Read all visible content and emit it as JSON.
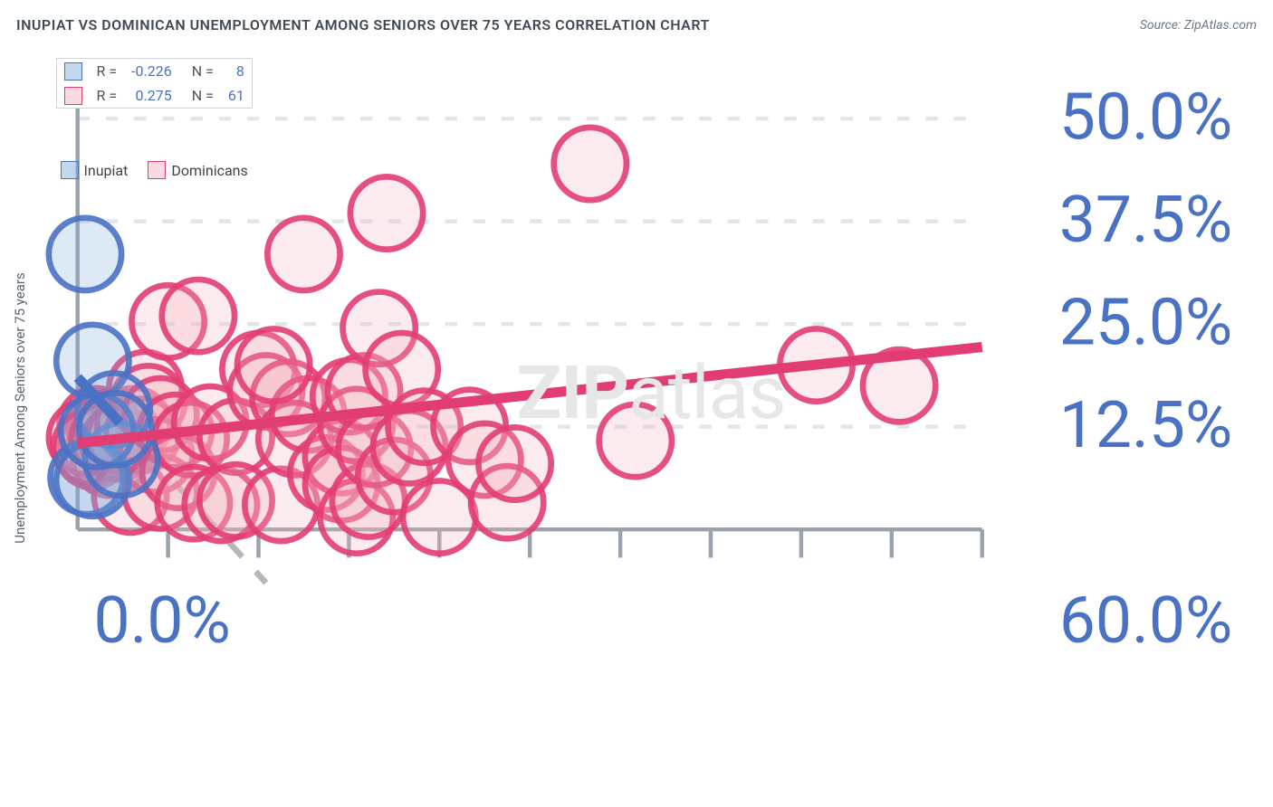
{
  "title": "INUPIAT VS DOMINICAN UNEMPLOYMENT AMONG SENIORS OVER 75 YEARS CORRELATION CHART",
  "source": "Source: ZipAtlas.com",
  "ylabel": "Unemployment Among Seniors over 75 years",
  "watermark_zip": "ZIP",
  "watermark_atlas": "atlas",
  "chart": {
    "type": "scatter",
    "xlim": [
      0,
      60
    ],
    "ylim": [
      0,
      55
    ],
    "x_axis_origin_label": "0.0%",
    "x_axis_max_label": "60.0%",
    "x_ticks": [
      6,
      12,
      18,
      24,
      30,
      36,
      42,
      48,
      54,
      60
    ],
    "y_grid": [
      {
        "value": 12.5,
        "label": "12.5%"
      },
      {
        "value": 25.0,
        "label": "25.0%"
      },
      {
        "value": 37.5,
        "label": "37.5%"
      },
      {
        "value": 50.0,
        "label": "50.0%"
      }
    ],
    "grid_color": "#e2e6ea",
    "axis_color": "#9aa3ad",
    "axis_label_color": "#4a72c4",
    "background_color": "#ffffff",
    "marker_radius": 9,
    "marker_fill_opacity": 0.25,
    "marker_stroke_opacity": 0.9
  },
  "series": {
    "inupiat": {
      "label": "Inupiat",
      "color": "#7ba6da",
      "stroke": "#4a72c4",
      "R": "-0.226",
      "N": "8",
      "trend": {
        "x1": 0,
        "y1": 18.5,
        "x2": 2.8,
        "y2": 13.0,
        "extend_x2": 12.5,
        "extend_y2": -6.5
      },
      "points": [
        {
          "x": 0.5,
          "y": 33.5
        },
        {
          "x": 1.0,
          "y": 20.5
        },
        {
          "x": 0.6,
          "y": 6.3
        },
        {
          "x": 1.0,
          "y": 6.0
        },
        {
          "x": 2.9,
          "y": 8.5
        },
        {
          "x": 2.4,
          "y": 14.6
        },
        {
          "x": 1.3,
          "y": 12.0
        },
        {
          "x": 2.5,
          "y": 12.2
        }
      ]
    },
    "dominicans": {
      "label": "Dominicans",
      "color": "#f2aebd",
      "stroke": "#e23d73",
      "R": "0.275",
      "N": "61",
      "trend": {
        "x1": 0,
        "y1": 10.5,
        "x2": 60,
        "y2": 22.2
      },
      "points": [
        {
          "x": 1.0,
          "y": 9.5
        },
        {
          "x": 1.3,
          "y": 10.5
        },
        {
          "x": 1.2,
          "y": 12.8
        },
        {
          "x": 1.8,
          "y": 12.2
        },
        {
          "x": 2.1,
          "y": 8.5
        },
        {
          "x": 0.5,
          "y": 11.2
        },
        {
          "x": 0.8,
          "y": 10.0
        },
        {
          "x": 2.3,
          "y": 12.5
        },
        {
          "x": 2.0,
          "y": 11.0
        },
        {
          "x": 2.7,
          "y": 10.5
        },
        {
          "x": 3.1,
          "y": 11.3
        },
        {
          "x": 3.7,
          "y": 12.8
        },
        {
          "x": 3.5,
          "y": 4.0
        },
        {
          "x": 4.5,
          "y": 17.2
        },
        {
          "x": 4.3,
          "y": 11.5
        },
        {
          "x": 4.7,
          "y": 15.5
        },
        {
          "x": 5.2,
          "y": 9.0
        },
        {
          "x": 5.5,
          "y": 14.0
        },
        {
          "x": 5.5,
          "y": 4.5
        },
        {
          "x": 6.0,
          "y": 25.3
        },
        {
          "x": 6.5,
          "y": 12.0
        },
        {
          "x": 6.7,
          "y": 7.0
        },
        {
          "x": 7.5,
          "y": 11.0
        },
        {
          "x": 7.7,
          "y": 3.2
        },
        {
          "x": 8.0,
          "y": 26.0
        },
        {
          "x": 8.8,
          "y": 13.0
        },
        {
          "x": 9.5,
          "y": 3.0
        },
        {
          "x": 10.5,
          "y": 11.3
        },
        {
          "x": 10.5,
          "y": 3.5
        },
        {
          "x": 12.0,
          "y": 19.5
        },
        {
          "x": 12.5,
          "y": 16.8
        },
        {
          "x": 13.5,
          "y": 3.0
        },
        {
          "x": 14.0,
          "y": 16.0
        },
        {
          "x": 14.4,
          "y": 11.0
        },
        {
          "x": 15.0,
          "y": 33.5
        },
        {
          "x": 15.3,
          "y": 14.0
        },
        {
          "x": 16.5,
          "y": 6.8
        },
        {
          "x": 17.5,
          "y": 8.8
        },
        {
          "x": 17.5,
          "y": 5.5
        },
        {
          "x": 18.0,
          "y": 16.2
        },
        {
          "x": 18.5,
          "y": 12.7
        },
        {
          "x": 18.5,
          "y": 1.5
        },
        {
          "x": 19.0,
          "y": 16.8
        },
        {
          "x": 19.3,
          "y": 3.5
        },
        {
          "x": 19.7,
          "y": 9.8
        },
        {
          "x": 20.0,
          "y": 24.5
        },
        {
          "x": 20.5,
          "y": 38.5
        },
        {
          "x": 21.0,
          "y": 6.5
        },
        {
          "x": 21.5,
          "y": 19.5
        },
        {
          "x": 22.0,
          "y": 10.0
        },
        {
          "x": 23.0,
          "y": 12.5
        },
        {
          "x": 24.0,
          "y": 1.5
        },
        {
          "x": 26.0,
          "y": 12.6
        },
        {
          "x": 27.0,
          "y": 8.5
        },
        {
          "x": 28.5,
          "y": 3.3
        },
        {
          "x": 29.0,
          "y": 8.0
        },
        {
          "x": 34.0,
          "y": 44.5
        },
        {
          "x": 37.0,
          "y": 10.8
        },
        {
          "x": 49.0,
          "y": 20.0
        },
        {
          "x": 54.5,
          "y": 17.5
        },
        {
          "x": 13.0,
          "y": 20.0
        }
      ]
    }
  },
  "legend_top": {
    "R_label": "R =",
    "N_label": "N ="
  },
  "legend_bottom": [
    {
      "key": "inupiat"
    },
    {
      "key": "dominicans"
    }
  ]
}
